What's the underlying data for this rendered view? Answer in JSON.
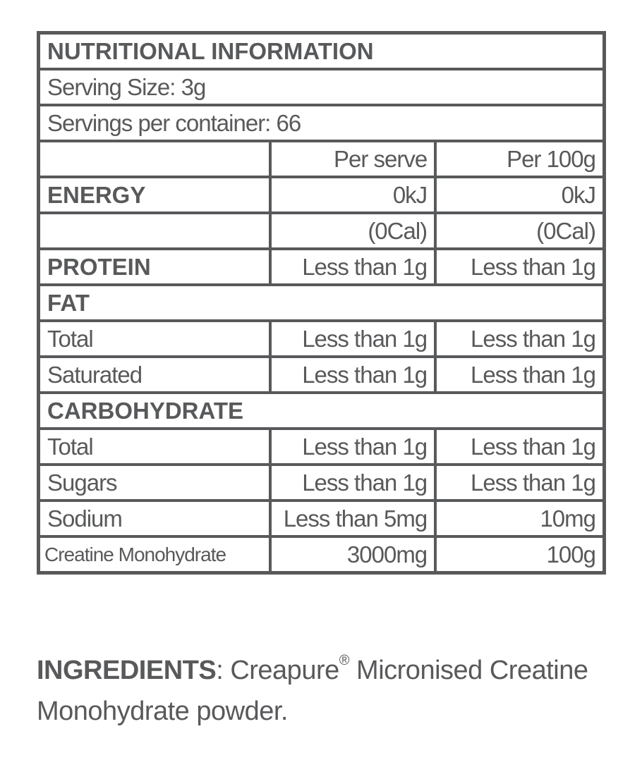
{
  "table": {
    "title": "NUTRITIONAL INFORMATION",
    "rows": [
      {
        "text": "Serving Size: 3g"
      },
      {
        "text": "Servings per container: 66"
      },
      {
        "per_serve": "Per serve",
        "per_100g": "Per 100g"
      },
      {
        "heading": "ENERGY",
        "per_serve": "0kJ",
        "per_100g": "0kJ"
      },
      {
        "per_serve": "(0Cal)",
        "per_100g": "(0Cal)"
      },
      {
        "heading": "PROTEIN",
        "per_serve": "Less than 1g",
        "per_100g": "Less than 1g"
      },
      {
        "heading": "FAT"
      },
      {
        "label": "Total",
        "per_serve": "Less than 1g",
        "per_100g": "Less than 1g"
      },
      {
        "label": "Saturated",
        "per_serve": "Less than 1g",
        "per_100g": "Less than 1g"
      },
      {
        "heading": "CARBOHYDRATE"
      },
      {
        "label": "Total",
        "per_serve": "Less than 1g",
        "per_100g": "Less than 1g"
      },
      {
        "label": "Sugars",
        "per_serve": "Less than 1g",
        "per_100g": "Less than 1g"
      },
      {
        "label": "Sodium",
        "per_serve": "Less than 5mg",
        "per_100g": "10mg"
      },
      {
        "label": "Creatine Monohydrate",
        "per_serve": "3000mg",
        "per_100g": "100g"
      }
    ]
  },
  "ingredients": {
    "label": "INGREDIENTS",
    "text_before": ": Creapure",
    "mark": "®",
    "text_after": " Micronised Creatine Monohydrate powder."
  }
}
